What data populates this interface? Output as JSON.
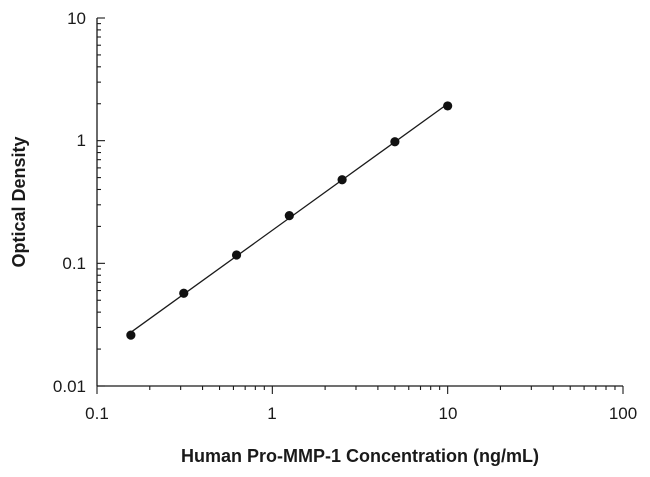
{
  "chart_data": {
    "type": "scatter",
    "title": "",
    "xlabel": "Human Pro-MMP-1 Concentration (ng/mL)",
    "ylabel": "Optical Density",
    "x_scale": "log",
    "y_scale": "log",
    "xlim": [
      0.1,
      100
    ],
    "ylim": [
      0.01,
      10
    ],
    "x_ticks": [
      "0.1",
      "1",
      "10",
      "100"
    ],
    "y_ticks": [
      "0.01",
      "0.1",
      "1",
      "10"
    ],
    "grid": false,
    "legend": "none",
    "series": [
      {
        "x": [
          0.156,
          0.3125,
          0.625,
          1.25,
          2.5,
          5,
          10
        ],
        "y": [
          0.026,
          0.057,
          0.117,
          0.245,
          0.48,
          0.98,
          1.92
        ],
        "marker": "circle",
        "color": "#111111",
        "fit_line": true
      }
    ]
  }
}
